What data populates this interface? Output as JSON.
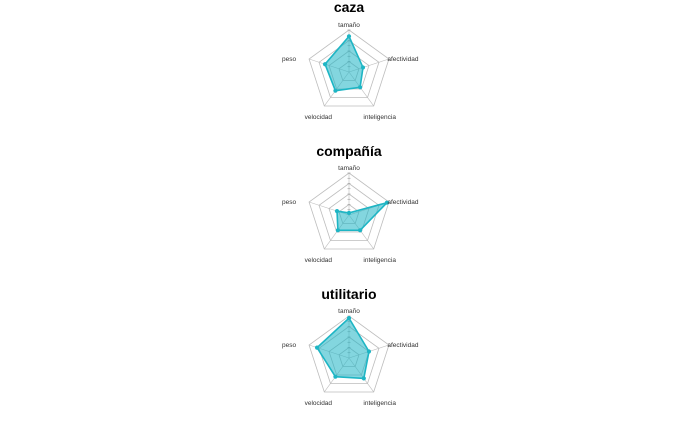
{
  "chart_data": [
    {
      "type": "radar",
      "title": "caza",
      "axes": [
        "tamaño",
        "afectividad",
        "inteligencia",
        "velocidad",
        "peso"
      ],
      "values": [
        0.85,
        0.35,
        0.45,
        0.55,
        0.6
      ],
      "range": [
        0,
        1
      ],
      "rings": 4,
      "color": "#1eb5c4"
    },
    {
      "type": "radar",
      "title": "compañía",
      "axes": [
        "tamaño",
        "afectividad",
        "inteligencia",
        "velocidad",
        "peso"
      ],
      "values": [
        0.05,
        0.95,
        0.45,
        0.45,
        0.3
      ],
      "range": [
        0,
        1
      ],
      "rings": 4,
      "color": "#1eb5c4"
    },
    {
      "type": "radar",
      "title": "utilitario",
      "axes": [
        "tamaño",
        "afectividad",
        "inteligencia",
        "velocidad",
        "peso"
      ],
      "values": [
        0.95,
        0.5,
        0.6,
        0.55,
        0.8
      ],
      "range": [
        0,
        1
      ],
      "rings": 4,
      "color": "#1eb5c4"
    }
  ]
}
